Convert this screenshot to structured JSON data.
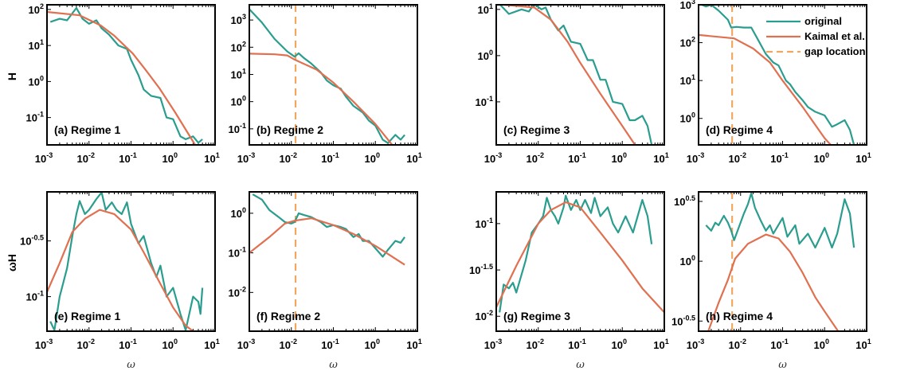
{
  "colors": {
    "original": "#2a9d8f",
    "kaimal": "#e07050",
    "gap": "#f0a860",
    "axis": "#000000"
  },
  "legend": {
    "placement": "top-right of panel (d)",
    "entries": [
      "original",
      "Kaimal et al.",
      "gap location"
    ]
  },
  "row_ylabels": [
    "H",
    "ωH"
  ],
  "xlabel": "ω",
  "chart_data": [
    {
      "type": "line",
      "panel": "(a)",
      "label": "(a)  Regime 1",
      "xscale": "log",
      "yscale": "log",
      "xlim": [
        0.001,
        10
      ],
      "ylim": [
        0.0174,
        135
      ],
      "xticks": [
        "-3",
        "-2",
        "-1",
        "0",
        "1"
      ],
      "yticks": [
        {
          "exp": "2",
          "value": 100
        },
        {
          "exp": "1",
          "value": 10
        },
        {
          "exp": "0",
          "value": 1
        },
        {
          "exp": "-1",
          "value": 0.1
        }
      ],
      "series": [
        {
          "name": "original",
          "x": [
            0.0012,
            0.002,
            0.003,
            0.005,
            0.007,
            0.01,
            0.015,
            0.02,
            0.03,
            0.05,
            0.08,
            0.1,
            0.15,
            0.2,
            0.3,
            0.5,
            0.7,
            1,
            1.5,
            2,
            3,
            4,
            5
          ],
          "y": [
            45,
            55,
            50,
            110,
            55,
            40,
            50,
            30,
            20,
            10,
            8,
            4,
            1.5,
            0.6,
            0.4,
            0.35,
            0.1,
            0.09,
            0.03,
            0.025,
            0.03,
            0.02,
            0.025
          ]
        },
        {
          "name": "Kaimal et al.",
          "x": [
            0.00105,
            0.006,
            0.019,
            0.04,
            0.11,
            0.23,
            0.47,
            1.12,
            3.4
          ],
          "y": [
            85,
            69,
            36,
            18.6,
            6,
            2,
            0.66,
            0.14,
            0.017
          ]
        }
      ]
    },
    {
      "type": "line",
      "panel": "(b)",
      "label": "(b)  Regime 2",
      "xscale": "log",
      "yscale": "log",
      "xlim": [
        0.001,
        10
      ],
      "ylim": [
        0.0257,
        3630
      ],
      "gap_location": 0.0126,
      "xticks": [
        "-3",
        "-2",
        "-1",
        "0",
        "1"
      ],
      "yticks": [
        {
          "exp": "3",
          "value": 1000
        },
        {
          "exp": "2",
          "value": 100
        },
        {
          "exp": "1",
          "value": 10
        },
        {
          "exp": "0",
          "value": 1
        },
        {
          "exp": "-1",
          "value": 0.1
        }
      ],
      "series": [
        {
          "name": "original",
          "x": [
            0.001,
            0.002,
            0.004,
            0.008,
            0.012,
            0.015,
            0.02,
            0.03,
            0.05,
            0.07,
            0.1,
            0.15,
            0.2,
            0.3,
            0.5,
            0.7,
            1,
            1.5,
            2,
            3,
            4,
            5
          ],
          "y": [
            2500,
            800,
            200,
            70,
            45,
            60,
            40,
            25,
            12,
            6,
            4,
            3,
            1.5,
            0.7,
            0.4,
            0.2,
            0.13,
            0.04,
            0.03,
            0.06,
            0.04,
            0.06
          ]
        },
        {
          "name": "Kaimal et al.",
          "x": [
            0.001,
            0.004,
            0.008,
            0.012,
            0.04,
            0.1,
            0.3,
            1,
            2.5
          ],
          "y": [
            58,
            55,
            50,
            35,
            15,
            5,
            1,
            0.15,
            0.026
          ]
        }
      ]
    },
    {
      "type": "line",
      "panel": "(c)",
      "label": "(c)  Regime 3",
      "xscale": "log",
      "yscale": "log",
      "xlim": [
        0.001,
        10
      ],
      "ylim": [
        0.0117,
        12.6
      ],
      "xticks": [
        "-3",
        "-2",
        "-1",
        "0",
        "1"
      ],
      "yticks": [
        {
          "exp": "1",
          "value": 10
        },
        {
          "exp": "0",
          "value": 1
        },
        {
          "exp": "-1",
          "value": 0.1
        }
      ],
      "series": [
        {
          "name": "original",
          "x": [
            0.0012,
            0.002,
            0.004,
            0.006,
            0.008,
            0.012,
            0.015,
            0.02,
            0.03,
            0.04,
            0.06,
            0.1,
            0.15,
            0.2,
            0.3,
            0.4,
            0.6,
            1,
            1.5,
            2,
            3,
            4,
            5
          ],
          "y": [
            13,
            8,
            10,
            9,
            13,
            10,
            11,
            6,
            3.5,
            4.5,
            2,
            1.8,
            0.8,
            0.8,
            0.3,
            0.3,
            0.1,
            0.09,
            0.04,
            0.04,
            0.05,
            0.03,
            0.0118
          ]
        },
        {
          "name": "Kaimal et al.",
          "x": [
            0.001,
            0.008,
            0.02,
            0.05,
            0.1,
            0.3,
            1,
            2
          ],
          "y": [
            13,
            11,
            6,
            2,
            0.7,
            0.15,
            0.03,
            0.0118
          ]
        }
      ]
    },
    {
      "type": "line",
      "panel": "(d)",
      "label": "(d)  Regime 4",
      "xscale": "log",
      "yscale": "log",
      "xlim": [
        0.001,
        10
      ],
      "ylim": [
        0.2,
        1000
      ],
      "gap_location": 0.0063,
      "xticks": [
        "-3",
        "-2",
        "-1",
        "0",
        "1"
      ],
      "yticks": [
        {
          "exp": "3",
          "value": 1000
        },
        {
          "exp": "2",
          "value": 100
        },
        {
          "exp": "1",
          "value": 10
        },
        {
          "exp": "0",
          "value": 1
        }
      ],
      "series": [
        {
          "name": "original",
          "x": [
            0.0012,
            0.0015,
            0.002,
            0.003,
            0.005,
            0.006,
            0.008,
            0.012,
            0.018,
            0.025,
            0.04,
            0.06,
            0.08,
            0.12,
            0.15,
            0.2,
            0.3,
            0.4,
            0.6,
            1,
            1.5,
            2,
            3,
            4,
            5
          ],
          "y": [
            1000,
            900,
            1000,
            700,
            400,
            250,
            260,
            250,
            250,
            130,
            50,
            30,
            25,
            10,
            8,
            5,
            3,
            2,
            1.5,
            1.2,
            0.6,
            0.7,
            0.9,
            0.5,
            0.2
          ]
        },
        {
          "name": "Kaimal et al.",
          "x": [
            0.001,
            0.007,
            0.02,
            0.05,
            0.1,
            0.3,
            1,
            1.4
          ],
          "y": [
            160,
            130,
            70,
            30,
            10,
            2,
            0.3,
            0.2
          ]
        }
      ]
    },
    {
      "type": "line",
      "panel": "(e)",
      "label": "(e)  Regime 1",
      "xscale": "log",
      "yscale": "log",
      "xlim": [
        0.001,
        10
      ],
      "ylim": [
        0.049,
        0.87
      ],
      "xticks": [
        "-3",
        "-2",
        "-1",
        "0",
        "1"
      ],
      "yticks": [
        {
          "exp": "-0.5",
          "value": 0.316
        },
        {
          "exp": "-1",
          "value": 0.1
        }
      ],
      "series": [
        {
          "name": "original",
          "x": [
            0.0012,
            0.0015,
            0.002,
            0.003,
            0.004,
            0.005,
            0.006,
            0.008,
            0.01,
            0.015,
            0.02,
            0.025,
            0.035,
            0.045,
            0.06,
            0.08,
            0.1,
            0.15,
            0.2,
            0.3,
            0.4,
            0.5,
            0.7,
            1,
            1.5,
            2,
            3,
            4,
            4.5,
            5
          ],
          "y": [
            0.06,
            0.05,
            0.1,
            0.18,
            0.35,
            0.55,
            0.72,
            0.55,
            0.6,
            0.75,
            0.86,
            0.6,
            0.7,
            0.6,
            0.55,
            0.7,
            0.45,
            0.3,
            0.35,
            0.2,
            0.15,
            0.19,
            0.1,
            0.12,
            0.07,
            0.05,
            0.1,
            0.09,
            0.07,
            0.12
          ]
        },
        {
          "name": "Kaimal et al.",
          "x": [
            0.001,
            0.002,
            0.004,
            0.008,
            0.018,
            0.04,
            0.1,
            0.2,
            0.5,
            1,
            2,
            3
          ],
          "y": [
            0.11,
            0.2,
            0.38,
            0.5,
            0.6,
            0.55,
            0.4,
            0.25,
            0.13,
            0.08,
            0.055,
            0.049
          ]
        }
      ]
    },
    {
      "type": "line",
      "panel": "(f)",
      "label": "(f)  Regime 2",
      "xscale": "log",
      "yscale": "log",
      "xlim": [
        0.001,
        10
      ],
      "ylim": [
        0.00105,
        3.47
      ],
      "gap_location": 0.0126,
      "xticks": [
        "-3",
        "-2",
        "-1",
        "0",
        "1"
      ],
      "yticks": [
        {
          "exp": "0",
          "value": 1
        },
        {
          "exp": "-1",
          "value": 0.1
        },
        {
          "exp": "-2",
          "value": 0.01
        }
      ],
      "series": [
        {
          "name": "original",
          "x": [
            0.0012,
            0.002,
            0.003,
            0.005,
            0.007,
            0.01,
            0.012,
            0.015,
            0.02,
            0.03,
            0.05,
            0.07,
            0.1,
            0.15,
            0.2,
            0.3,
            0.4,
            0.5,
            0.7,
            1,
            1.5,
            2,
            3,
            4,
            5
          ],
          "y": [
            3,
            2.2,
            1.2,
            0.8,
            0.6,
            0.55,
            0.6,
            1.0,
            0.9,
            0.8,
            0.6,
            0.45,
            0.5,
            0.45,
            0.4,
            0.25,
            0.3,
            0.2,
            0.2,
            0.13,
            0.08,
            0.12,
            0.2,
            0.18,
            0.25
          ]
        },
        {
          "name": "Kaimal et al.",
          "x": [
            0.001,
            0.003,
            0.007,
            0.012,
            0.03,
            0.1,
            0.3,
            1,
            5
          ],
          "y": [
            0.1,
            0.25,
            0.55,
            0.65,
            0.75,
            0.5,
            0.3,
            0.15,
            0.05
          ]
        }
      ]
    },
    {
      "type": "line",
      "panel": "(g)",
      "label": "(g)  Regime 3",
      "xscale": "log",
      "yscale": "log",
      "xlim": [
        0.001,
        10
      ],
      "ylim": [
        0.0069,
        0.22
      ],
      "xticks": [
        "-3",
        "-2",
        "-1",
        "0",
        "1"
      ],
      "yticks": [
        {
          "exp": "-1",
          "value": 0.1
        },
        {
          "exp": "-1.5",
          "value": 0.0316
        },
        {
          "exp": "-2",
          "value": 0.01
        }
      ],
      "series": [
        {
          "name": "original",
          "x": [
            0.0012,
            0.0015,
            0.002,
            0.0025,
            0.003,
            0.005,
            0.007,
            0.01,
            0.013,
            0.016,
            0.02,
            0.025,
            0.03,
            0.04,
            0.045,
            0.06,
            0.08,
            0.1,
            0.13,
            0.18,
            0.22,
            0.3,
            0.45,
            0.6,
            0.8,
            1.2,
            1.8,
            3,
            4,
            5
          ],
          "y": [
            0.011,
            0.022,
            0.02,
            0.023,
            0.018,
            0.04,
            0.08,
            0.1,
            0.12,
            0.19,
            0.14,
            0.12,
            0.1,
            0.15,
            0.2,
            0.14,
            0.18,
            0.14,
            0.18,
            0.13,
            0.19,
            0.12,
            0.15,
            0.1,
            0.08,
            0.12,
            0.08,
            0.18,
            0.12,
            0.06
          ]
        },
        {
          "name": "Kaimal et al.",
          "x": [
            0.001,
            0.003,
            0.01,
            0.02,
            0.045,
            0.1,
            0.3,
            1,
            3,
            10
          ],
          "y": [
            0.0125,
            0.035,
            0.1,
            0.14,
            0.17,
            0.15,
            0.08,
            0.04,
            0.02,
            0.011
          ]
        }
      ]
    },
    {
      "type": "line",
      "panel": "(h)",
      "label": "(h)  Regime 4",
      "xscale": "log",
      "yscale": "log",
      "xlim": [
        0.001,
        10
      ],
      "ylim": [
        0.26,
        3.8
      ],
      "gap_location": 0.0063,
      "xticks": [
        "-3",
        "-2",
        "-1",
        "0",
        "1"
      ],
      "yticks": [
        {
          "exp": "0.5",
          "value": 3.162
        },
        {
          "exp": "0",
          "value": 1
        },
        {
          "exp": "-0.5",
          "value": 0.316
        }
      ],
      "series": [
        {
          "name": "original",
          "x": [
            0.0015,
            0.002,
            0.0025,
            0.003,
            0.004,
            0.005,
            0.006,
            0.007,
            0.009,
            0.012,
            0.015,
            0.018,
            0.022,
            0.03,
            0.04,
            0.05,
            0.06,
            0.1,
            0.13,
            0.2,
            0.25,
            0.4,
            0.6,
            1,
            1.5,
            2,
            3,
            4,
            5
          ],
          "y": [
            2.0,
            1.8,
            2.1,
            2.0,
            2.4,
            2.1,
            1.8,
            1.5,
            1.9,
            2.5,
            3.0,
            3.7,
            2.8,
            2.2,
            1.8,
            2.0,
            1.7,
            2.3,
            1.6,
            2.0,
            1.4,
            1.7,
            1.3,
            1.9,
            1.3,
            1.7,
            3.3,
            2.5,
            1.3
          ]
        },
        {
          "name": "Kaimal et al.",
          "x": [
            0.0017,
            0.003,
            0.005,
            0.0074,
            0.015,
            0.04,
            0.08,
            0.15,
            0.3,
            0.6,
            1,
            2.1
          ],
          "y": [
            0.26,
            0.45,
            0.7,
            1.05,
            1.4,
            1.67,
            1.55,
            1.2,
            0.8,
            0.5,
            0.38,
            0.26
          ]
        }
      ]
    }
  ]
}
